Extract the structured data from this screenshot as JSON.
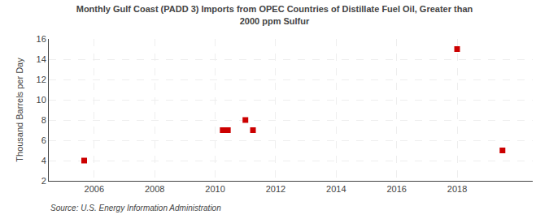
{
  "chart_data": {
    "type": "scatter",
    "title": "Monthly Gulf Coast (PADD 3) Imports from OPEC Countries of Distillate Fuel Oil, Greater than\n2000 ppm Sulfur",
    "ylabel": "Thousand Barrels per Day",
    "annotations": [
      "Source: U.S. Energy Information Administration"
    ],
    "x": [
      2005.67,
      2010.25,
      2010.42,
      2011.0,
      2011.25,
      2018.0,
      2019.5
    ],
    "values": [
      4.0,
      7.0,
      7.0,
      8.0,
      7.0,
      15.0,
      5.0
    ],
    "color": "#cc0000",
    "marker": "square",
    "xlim": [
      2004.5,
      2020.5
    ],
    "ylim": [
      2,
      16
    ],
    "xticks": [
      2006,
      2008,
      2010,
      2012,
      2014,
      2016,
      2018
    ],
    "yticks": [
      2,
      4,
      6,
      8,
      10,
      12,
      14,
      16
    ],
    "grid": true
  }
}
